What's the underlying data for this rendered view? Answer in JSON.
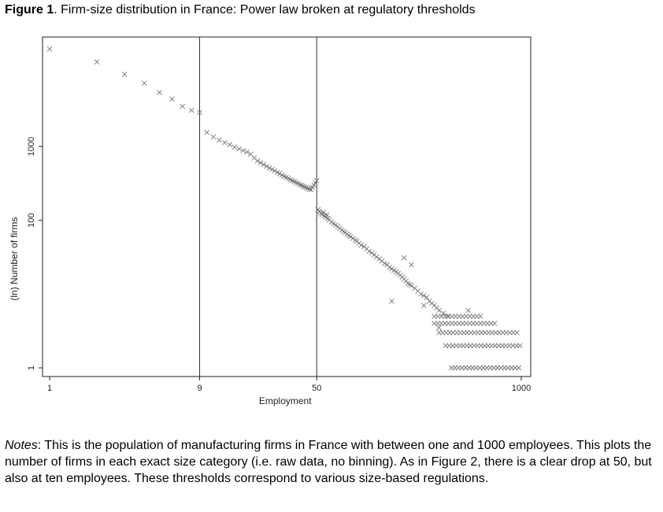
{
  "figure": {
    "label": "Figure 1",
    "caption": ". Firm-size distribution in France: Power law broken at regulatory thresholds"
  },
  "notes": {
    "label": "Notes",
    "text": ": This is the population of manufacturing firms in France with between one and 1000 employees. This plots the number of firms in each exact size category (i.e. raw data, no binning). As in Figure 2, there is a clear drop at 50, but also at ten employees. These thresholds correspond to various size-based regulations."
  },
  "chart_data": {
    "type": "scatter",
    "title": "",
    "xlabel": "Employment",
    "ylabel": "(ln) Number of firms",
    "x_scale": "log",
    "y_scale": "log",
    "xlim": [
      1,
      1000
    ],
    "ylim": [
      1,
      30000
    ],
    "x_ticks": [
      1,
      9,
      50,
      1000
    ],
    "x_tick_labels": [
      "1",
      "9",
      "50",
      "1000"
    ],
    "y_ticks": [
      1,
      100,
      1000
    ],
    "y_tick_labels": [
      "1",
      "100",
      "1000"
    ],
    "vlines": [
      9,
      50
    ],
    "grid": false,
    "legend": "none",
    "marker": "x",
    "marker_color": "#777777",
    "points": [
      [
        1,
        21000
      ],
      [
        2,
        14000
      ],
      [
        3,
        9500
      ],
      [
        4,
        7200
      ],
      [
        5,
        5400
      ],
      [
        6,
        4400
      ],
      [
        7,
        3500
      ],
      [
        8,
        3100
      ],
      [
        9,
        2900
      ],
      [
        10,
        1550
      ],
      [
        11,
        1350
      ],
      [
        12,
        1220
      ],
      [
        13,
        1130
      ],
      [
        14,
        1060
      ],
      [
        15,
        980
      ],
      [
        16,
        930
      ],
      [
        17,
        880
      ],
      [
        18,
        840
      ],
      [
        19,
        790
      ],
      [
        20,
        700
      ],
      [
        21,
        640
      ],
      [
        22,
        600
      ],
      [
        23,
        570
      ],
      [
        24,
        540
      ],
      [
        25,
        510
      ],
      [
        26,
        490
      ],
      [
        27,
        470
      ],
      [
        28,
        445
      ],
      [
        29,
        430
      ],
      [
        30,
        410
      ],
      [
        31,
        395
      ],
      [
        32,
        380
      ],
      [
        33,
        370
      ],
      [
        34,
        355
      ],
      [
        35,
        345
      ],
      [
        36,
        335
      ],
      [
        37,
        325
      ],
      [
        38,
        315
      ],
      [
        39,
        305
      ],
      [
        40,
        298
      ],
      [
        41,
        290
      ],
      [
        42,
        282
      ],
      [
        43,
        276
      ],
      [
        44,
        270
      ],
      [
        45,
        265
      ],
      [
        46,
        260
      ],
      [
        47,
        280
      ],
      [
        48,
        300
      ],
      [
        49,
        320
      ],
      [
        50,
        345
      ],
      [
        51,
        140
      ],
      [
        52,
        132
      ],
      [
        53,
        125
      ],
      [
        54,
        120
      ],
      [
        55,
        128
      ],
      [
        56,
        116
      ],
      [
        57,
        110
      ],
      [
        58,
        118
      ],
      [
        59,
        106
      ],
      [
        60,
        101
      ],
      [
        62,
        95
      ],
      [
        64,
        90
      ],
      [
        66,
        86
      ],
      [
        68,
        82
      ],
      [
        70,
        78
      ],
      [
        72,
        74
      ],
      [
        74,
        71
      ],
      [
        76,
        68
      ],
      [
        78,
        65
      ],
      [
        80,
        62
      ],
      [
        82,
        60
      ],
      [
        85,
        57
      ],
      [
        88,
        54
      ],
      [
        90,
        52
      ],
      [
        93,
        49
      ],
      [
        96,
        46
      ],
      [
        100,
        44
      ],
      [
        104,
        41
      ],
      [
        108,
        38
      ],
      [
        112,
        36
      ],
      [
        116,
        34
      ],
      [
        120,
        32
      ],
      [
        125,
        30
      ],
      [
        130,
        28
      ],
      [
        135,
        26
      ],
      [
        140,
        25
      ],
      [
        145,
        23
      ],
      [
        150,
        22
      ],
      [
        155,
        21
      ],
      [
        160,
        20
      ],
      [
        165,
        19
      ],
      [
        170,
        18
      ],
      [
        175,
        17
      ],
      [
        180,
        16
      ],
      [
        185,
        15
      ],
      [
        190,
        14
      ],
      [
        195,
        13.5
      ],
      [
        200,
        13
      ],
      [
        210,
        12
      ],
      [
        220,
        11
      ],
      [
        230,
        10
      ],
      [
        240,
        9.5
      ],
      [
        250,
        9
      ],
      [
        260,
        8
      ],
      [
        270,
        7.5
      ],
      [
        280,
        7
      ],
      [
        290,
        6.5
      ],
      [
        300,
        6
      ],
      [
        320,
        5.5
      ],
      [
        340,
        5
      ],
      [
        150,
        8
      ],
      [
        460,
        6
      ],
      [
        180,
        31
      ],
      [
        200,
        25
      ],
      [
        240,
        7
      ],
      [
        300,
        3.5
      ]
    ],
    "count_rows": [
      {
        "count": 5,
        "from": 280,
        "to": 560
      },
      {
        "count": 4,
        "from": 280,
        "to": 700
      },
      {
        "count": 3,
        "from": 300,
        "to": 980
      },
      {
        "count": 2,
        "from": 330,
        "to": 1000
      },
      {
        "count": 1,
        "from": 360,
        "to": 1000
      }
    ]
  }
}
